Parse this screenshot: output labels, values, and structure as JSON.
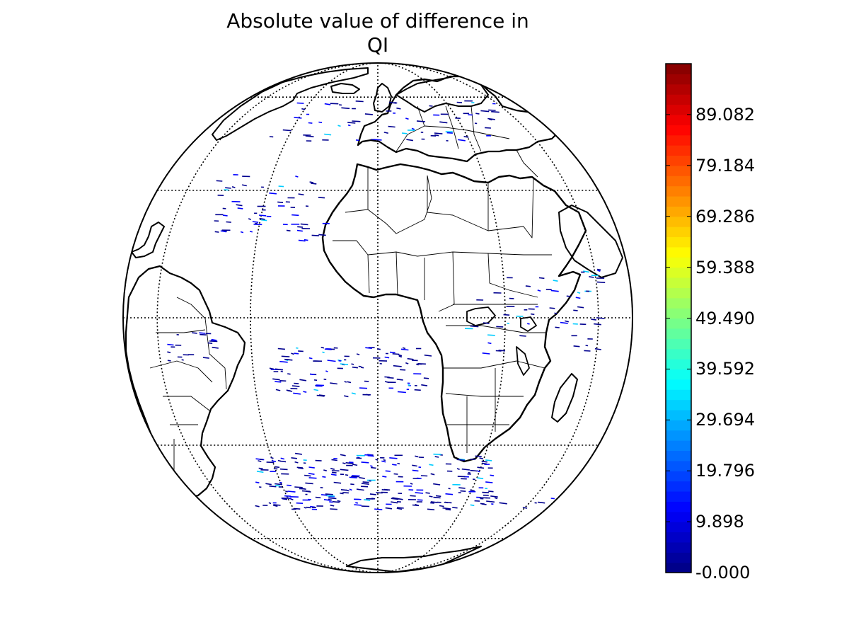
{
  "title": {
    "line1": "Absolute value of difference in",
    "line2": "QI"
  },
  "colorbar": {
    "colormap": "jet",
    "min": -0.0,
    "max": 98.98,
    "ticks": [
      {
        "value": 89.082,
        "label": "89.082"
      },
      {
        "value": 79.184,
        "label": "79.184"
      },
      {
        "value": 69.286,
        "label": "69.286"
      },
      {
        "value": 59.388,
        "label": "59.388"
      },
      {
        "value": 49.49,
        "label": "49.490"
      },
      {
        "value": 39.592,
        "label": "39.592"
      },
      {
        "value": 29.694,
        "label": "29.694"
      },
      {
        "value": 19.796,
        "label": "19.796"
      },
      {
        "value": 9.898,
        "label": "9.898"
      },
      {
        "value": -0.0,
        "label": "-0.000"
      }
    ]
  },
  "map": {
    "projection": "orthographic",
    "center": {
      "lon": 0,
      "lat": 0
    },
    "graticule": {
      "meridian_step_deg": 30,
      "parallel_step_deg": 30,
      "style": "dotted"
    },
    "coastlines": true,
    "country_borders": true,
    "field_color_low": "#00008f",
    "field_color_mid": "#0000ff",
    "field_color_high": "#00ccff"
  }
}
